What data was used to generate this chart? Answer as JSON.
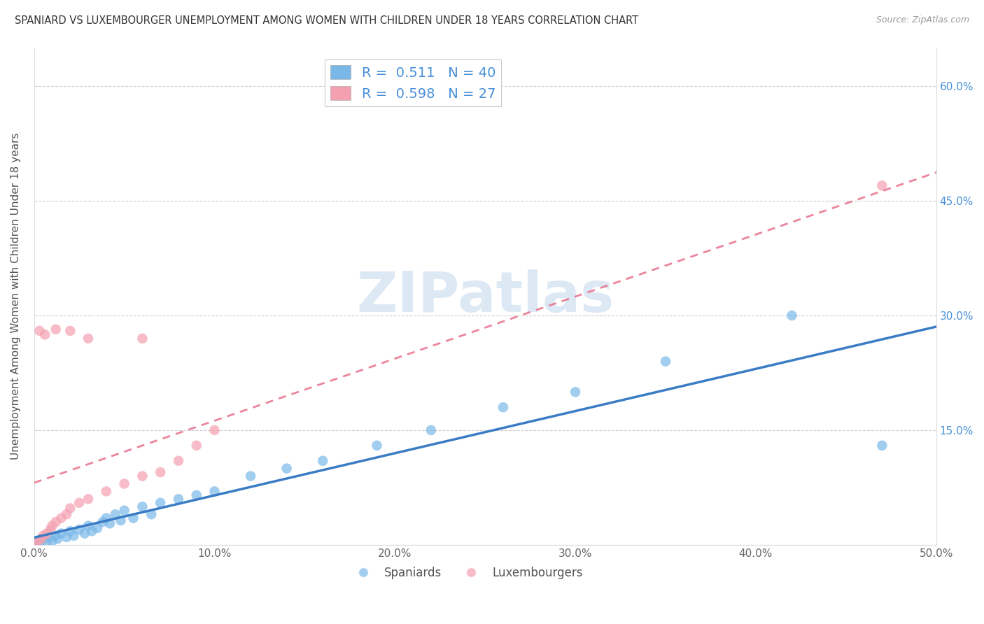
{
  "title": "SPANIARD VS LUXEMBOURGER UNEMPLOYMENT AMONG WOMEN WITH CHILDREN UNDER 18 YEARS CORRELATION CHART",
  "source": "Source: ZipAtlas.com",
  "ylabel": "Unemployment Among Women with Children Under 18 years",
  "xlim": [
    0.0,
    0.5
  ],
  "ylim": [
    0.0,
    0.65
  ],
  "xticks": [
    0.0,
    0.1,
    0.2,
    0.3,
    0.4,
    0.5
  ],
  "xticklabels": [
    "0.0%",
    "10.0%",
    "20.0%",
    "30.0%",
    "40.0%",
    "50.0%"
  ],
  "yticks_right": [
    0.15,
    0.3,
    0.45,
    0.6
  ],
  "yticklabels_right": [
    "15.0%",
    "30.0%",
    "45.0%",
    "60.0%"
  ],
  "spaniard_color": "#7ab8e8",
  "luxembourger_color": "#f4a0b0",
  "spaniard_line_color": "#3a7cc5",
  "luxembourger_line_color": "#e8708a",
  "R_spaniard": 0.511,
  "N_spaniard": 40,
  "R_luxembourger": 0.598,
  "N_luxembourger": 27,
  "watermark": "ZIPatlas",
  "spaniard_x": [
    0.001,
    0.003,
    0.005,
    0.007,
    0.008,
    0.01,
    0.012,
    0.013,
    0.015,
    0.018,
    0.02,
    0.022,
    0.025,
    0.028,
    0.03,
    0.032,
    0.035,
    0.038,
    0.04,
    0.042,
    0.045,
    0.048,
    0.05,
    0.055,
    0.06,
    0.065,
    0.07,
    0.08,
    0.09,
    0.1,
    0.12,
    0.14,
    0.16,
    0.19,
    0.22,
    0.26,
    0.3,
    0.35,
    0.42,
    0.47
  ],
  "spaniard_y": [
    0.005,
    0.002,
    0.008,
    0.003,
    0.01,
    0.005,
    0.012,
    0.008,
    0.015,
    0.01,
    0.018,
    0.012,
    0.02,
    0.015,
    0.025,
    0.018,
    0.022,
    0.03,
    0.035,
    0.028,
    0.04,
    0.032,
    0.045,
    0.035,
    0.05,
    0.04,
    0.055,
    0.06,
    0.065,
    0.07,
    0.09,
    0.1,
    0.11,
    0.13,
    0.15,
    0.18,
    0.2,
    0.24,
    0.3,
    0.13
  ],
  "luxembourger_x": [
    0.001,
    0.002,
    0.004,
    0.005,
    0.007,
    0.009,
    0.01,
    0.012,
    0.015,
    0.018,
    0.02,
    0.025,
    0.03,
    0.04,
    0.05,
    0.06,
    0.07,
    0.08,
    0.09,
    0.1,
    0.03,
    0.06,
    0.02,
    0.003,
    0.006,
    0.012,
    0.47
  ],
  "luxembourger_y": [
    0.003,
    0.005,
    0.008,
    0.012,
    0.015,
    0.02,
    0.025,
    0.03,
    0.035,
    0.04,
    0.048,
    0.055,
    0.06,
    0.07,
    0.08,
    0.09,
    0.095,
    0.11,
    0.13,
    0.15,
    0.27,
    0.27,
    0.28,
    0.28,
    0.275,
    0.282,
    0.47
  ]
}
